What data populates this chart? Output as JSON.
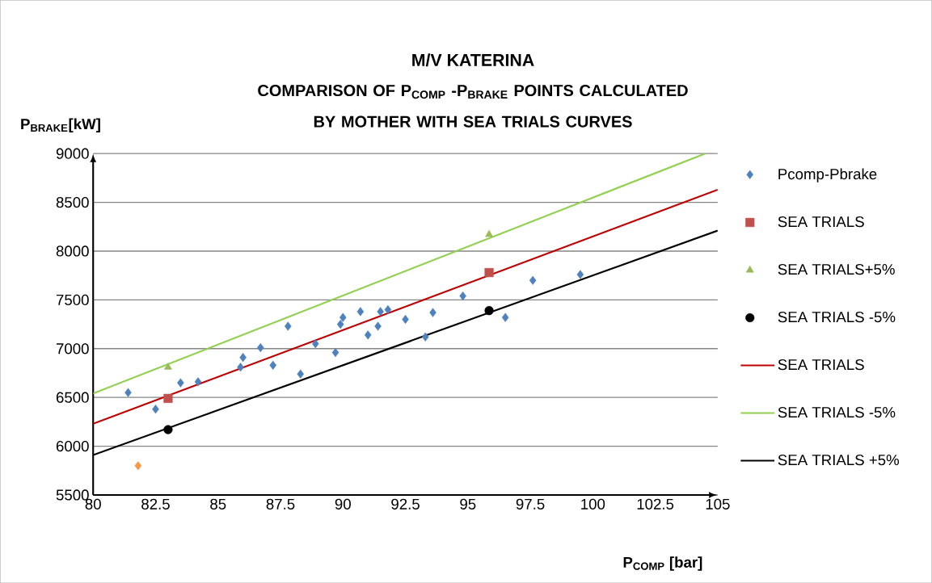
{
  "chart_data": {
    "type": "scatter",
    "title": "M/V KATERINA",
    "subtitle": "COMPARISON OF P$_{COMP}$ -P$_{BRAKE}$ POINTS CALCULATED BY MOTHER WITH SEA TRIALS CURVES",
    "xlabel": "P$_{COMP}$ [bar]",
    "ylabel": "P$_{BRAKE}$[kW]",
    "xlim": [
      80,
      105
    ],
    "ylim": [
      5500,
      9000
    ],
    "xticks": [
      80,
      82.5,
      85,
      87.5,
      90,
      92.5,
      95,
      97.5,
      100,
      102.5,
      105
    ],
    "yticks": [
      5500,
      6000,
      6500,
      7000,
      7500,
      8000,
      8500,
      9000
    ],
    "grid": "y",
    "legend": "right",
    "series": [
      {
        "name": "Pcomp-Pbrake",
        "marker": "diamond",
        "color": "#4f81bd",
        "x": [
          81.4,
          82.5,
          83.5,
          84.2,
          85.9,
          86.0,
          86.7,
          87.2,
          87.8,
          88.3,
          88.9,
          89.7,
          89.9,
          90.0,
          90.7,
          91.0,
          91.4,
          91.5,
          91.8,
          92.5,
          93.3,
          93.6,
          94.8,
          96.5,
          97.6,
          99.5,
          81.8
        ],
        "values": [
          6550,
          6380,
          6650,
          6660,
          6810,
          6910,
          7010,
          6830,
          7230,
          6740,
          7050,
          6960,
          7250,
          7320,
          7380,
          7140,
          7230,
          7380,
          7400,
          7300,
          7120,
          7370,
          7540,
          7320,
          7700,
          7760,
          5800
        ],
        "colors": [
          "#4f81bd",
          "#4f81bd",
          "#4f81bd",
          "#4f81bd",
          "#4f81bd",
          "#4f81bd",
          "#4f81bd",
          "#4f81bd",
          "#4f81bd",
          "#4f81bd",
          "#4f81bd",
          "#4f81bd",
          "#4f81bd",
          "#4f81bd",
          "#4f81bd",
          "#4f81bd",
          "#4f81bd",
          "#4f81bd",
          "#4f81bd",
          "#4f81bd",
          "#4f81bd",
          "#4f81bd",
          "#4f81bd",
          "#4f81bd",
          "#4f81bd",
          "#4f81bd",
          "#f79646"
        ]
      },
      {
        "name": "SEA TRIALS",
        "marker": "square",
        "color": "#c0504d",
        "x": [
          83.0,
          95.85
        ],
        "values": [
          6490,
          7780
        ]
      },
      {
        "name": "SEA TRIALS+5%",
        "marker": "triangle",
        "color": "#9bbb59",
        "x": [
          83.0,
          95.85
        ],
        "values": [
          6810,
          8170
        ]
      },
      {
        "name": "SEA TRIALS -5%",
        "marker": "circle",
        "color": "#000000",
        "x": [
          83.0,
          95.85
        ],
        "values": [
          6170,
          7390
        ]
      },
      {
        "name": "SEA TRIALS",
        "type": "line",
        "marker": "none",
        "color": "#c00000",
        "x": [
          80,
          105
        ],
        "values": [
          6230,
          8630
        ]
      },
      {
        "name": "SEA TRIALS -5%",
        "type": "line",
        "marker": "none",
        "color": "#92d050",
        "x": [
          80,
          104.5
        ],
        "values": [
          6540,
          9000
        ]
      },
      {
        "name": "SEA TRIALS +5%",
        "type": "line",
        "marker": "none",
        "color": "#000000",
        "x": [
          80,
          105
        ],
        "values": [
          5910,
          8210
        ]
      }
    ]
  }
}
